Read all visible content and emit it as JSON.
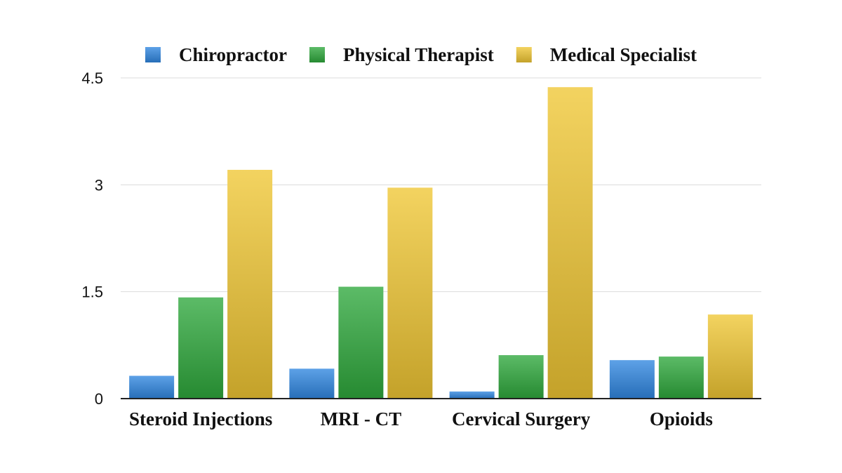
{
  "chart_data": {
    "type": "bar",
    "title": "",
    "xlabel": "",
    "ylabel": "",
    "categories": [
      "Steroid Injections",
      "MRI - CT",
      "Cervical Surgery",
      "Opioids"
    ],
    "series": [
      {
        "name": "Chiropractor",
        "values": [
          0.32,
          0.42,
          0.1,
          0.54
        ],
        "color": "#2f86e0"
      },
      {
        "name": "Physical Therapist",
        "values": [
          1.42,
          1.57,
          0.61,
          0.59
        ],
        "color": "#2ea83c"
      },
      {
        "name": "Medical Specialist",
        "values": [
          3.21,
          2.96,
          4.37,
          1.18
        ],
        "color": "#efc633"
      }
    ],
    "ylim": [
      0,
      4.5
    ],
    "yticks": [
      "0",
      "1.5",
      "3",
      "4.5"
    ],
    "grid": true,
    "legend": "top"
  }
}
